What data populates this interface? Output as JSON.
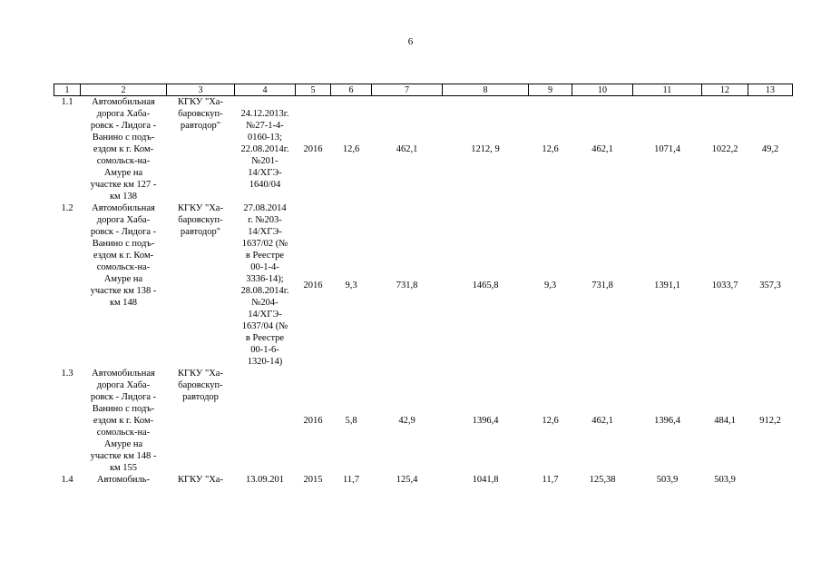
{
  "page": {
    "number": "6"
  },
  "table": {
    "columns": [
      "1",
      "2",
      "3",
      "4",
      "5",
      "6",
      "7",
      "8",
      "9",
      "10",
      "11",
      "12",
      "13"
    ],
    "rows": [
      {
        "num": "1.1",
        "object": "Автомобильная\nдорога Хаба-\nровск - Лидога -\nВанино с подъ-\nездом к г. Ком-\nсомольск-на-\nАмуре на\nучастке км 127 -\nкм 138",
        "customer": "КГКУ \"Ха-\nбаровскуп-\nравтодор\"",
        "doc": "24.12.2013г.\n№27-1-4-\n0160-13;\n22.08.2014г.\n№201-\n14/ХГЭ-\n1640/04",
        "c5": "2016",
        "c6": "12,6",
        "c7": "462,1",
        "c8": "1212, 9",
        "c9": "12,6",
        "c10": "462,1",
        "c11": "1071,4",
        "c12": "1022,2",
        "c13": "49,2"
      },
      {
        "num": "1.2",
        "object": "Автомобильная\nдорога Хаба-\nровск - Лидога -\nВанино с подъ-\nездом к г. Ком-\nсомольск-на-\nАмуре на\nучастке км 138 -\nкм 148",
        "customer": "КГКУ \"Ха-\nбаровскуп-\nравтодор\"",
        "doc": "27.08.2014\nг. №203-\n14/ХГЭ-\n1637/02 (№\nв Реестре\n00-1-4-\n3336-14);\n28.08.2014г.\n№204-\n14/ХГЭ-\n1637/04 (№\nв Реестре\n00-1-6-\n1320-14)",
        "c5": "2016",
        "c6": "9,3",
        "c7": "731,8",
        "c8": "1465,8",
        "c9": "9,3",
        "c10": "731,8",
        "c11": "1391,1",
        "c12": "1033,7",
        "c13": "357,3"
      },
      {
        "num": "1.3",
        "object": "Автомобильная\nдорога Хаба-\nровск - Лидога -\nВанино с подъ-\nездом к г. Ком-\nсомольск-на-\nАмуре на\nучастке км 148 -\nкм 155",
        "customer": "КГКУ \"Ха-\nбаровскуп-\nравтодор",
        "doc": "",
        "c5": "2016",
        "c6": "5,8",
        "c7": "42,9",
        "c8": "1396,4",
        "c9": "12,6",
        "c10": "462,1",
        "c11": "1396,4",
        "c12": "484,1",
        "c13": "912,2"
      },
      {
        "num": "1.4",
        "object": "Автомобиль-",
        "customer": "КГКУ \"Ха-",
        "doc": "13.09.201",
        "c5": "2015",
        "c6": "11,7",
        "c7": "125,4",
        "c8": "1041,8",
        "c9": "11,7",
        "c10": "125,38",
        "c11": "503,9",
        "c12": "503,9",
        "c13": ""
      }
    ]
  }
}
